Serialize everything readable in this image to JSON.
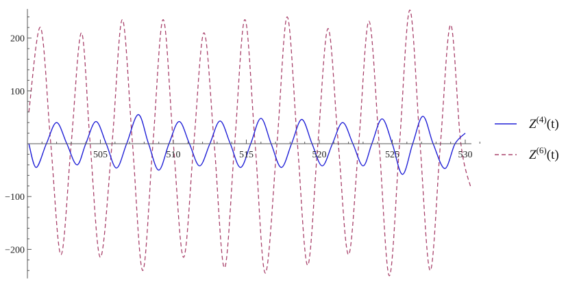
{
  "chart_data": {
    "type": "line",
    "xlim": [
      500,
      531
    ],
    "ylim": [
      -255,
      255
    ],
    "x_ticks": [
      505,
      510,
      515,
      520,
      525,
      530
    ],
    "y_ticks": [
      -200,
      -100,
      100,
      200
    ],
    "grid": false,
    "legend_position": "right",
    "series": [
      {
        "name": "Z(4)(t)",
        "legend_base": "Z",
        "legend_sup": "(4)",
        "legend_arg": "(t)",
        "color": "#1f1fd6",
        "style": "solid",
        "points": [
          [
            500.1,
            0
          ],
          [
            500.6,
            -45
          ],
          [
            501.3,
            0
          ],
          [
            502.0,
            40
          ],
          [
            502.7,
            0
          ],
          [
            503.4,
            -40
          ],
          [
            504.0,
            0
          ],
          [
            504.7,
            42
          ],
          [
            505.4,
            0
          ],
          [
            506.1,
            -46
          ],
          [
            506.8,
            0
          ],
          [
            507.6,
            55
          ],
          [
            508.3,
            0
          ],
          [
            509.0,
            -50
          ],
          [
            509.7,
            0
          ],
          [
            510.4,
            42
          ],
          [
            511.1,
            0
          ],
          [
            511.8,
            -42
          ],
          [
            512.5,
            0
          ],
          [
            513.2,
            43
          ],
          [
            513.9,
            0
          ],
          [
            514.6,
            -45
          ],
          [
            515.3,
            0
          ],
          [
            516.0,
            48
          ],
          [
            516.7,
            0
          ],
          [
            517.4,
            -45
          ],
          [
            518.1,
            0
          ],
          [
            518.8,
            46
          ],
          [
            519.5,
            0
          ],
          [
            520.2,
            -42
          ],
          [
            520.9,
            0
          ],
          [
            521.6,
            40
          ],
          [
            522.3,
            0
          ],
          [
            523.0,
            -42
          ],
          [
            523.6,
            0
          ],
          [
            524.3,
            47
          ],
          [
            525.0,
            0
          ],
          [
            525.7,
            -58
          ],
          [
            526.4,
            0
          ],
          [
            527.1,
            52
          ],
          [
            527.8,
            0
          ],
          [
            528.6,
            -47
          ],
          [
            529.3,
            0
          ],
          [
            530.0,
            20
          ]
        ]
      },
      {
        "name": "Z(6)(t)",
        "legend_base": "Z",
        "legend_sup": "(6)",
        "legend_arg": "(t)",
        "color": "#a8406a",
        "style": "dashed",
        "points": [
          [
            500.1,
            60
          ],
          [
            500.9,
            220
          ],
          [
            501.6,
            0
          ],
          [
            502.3,
            -210
          ],
          [
            503.0,
            0
          ],
          [
            503.7,
            210
          ],
          [
            504.3,
            0
          ],
          [
            505.0,
            -215
          ],
          [
            505.8,
            0
          ],
          [
            506.5,
            235
          ],
          [
            507.2,
            0
          ],
          [
            507.9,
            -240
          ],
          [
            508.6,
            0
          ],
          [
            509.3,
            235
          ],
          [
            510.0,
            0
          ],
          [
            510.7,
            -215
          ],
          [
            511.4,
            0
          ],
          [
            512.1,
            210
          ],
          [
            512.8,
            0
          ],
          [
            513.5,
            -235
          ],
          [
            514.2,
            0
          ],
          [
            514.9,
            235
          ],
          [
            515.6,
            0
          ],
          [
            516.3,
            -245
          ],
          [
            517.1,
            0
          ],
          [
            517.8,
            240
          ],
          [
            518.5,
            0
          ],
          [
            519.2,
            -230
          ],
          [
            519.9,
            0
          ],
          [
            520.6,
            218
          ],
          [
            521.3,
            0
          ],
          [
            522.0,
            -210
          ],
          [
            522.7,
            0
          ],
          [
            523.4,
            232
          ],
          [
            524.1,
            0
          ],
          [
            524.8,
            -250
          ],
          [
            525.5,
            0
          ],
          [
            526.2,
            253
          ],
          [
            526.9,
            0
          ],
          [
            527.6,
            -240
          ],
          [
            528.3,
            0
          ],
          [
            529.0,
            225
          ],
          [
            529.7,
            0
          ],
          [
            530.4,
            -85
          ]
        ]
      }
    ]
  }
}
